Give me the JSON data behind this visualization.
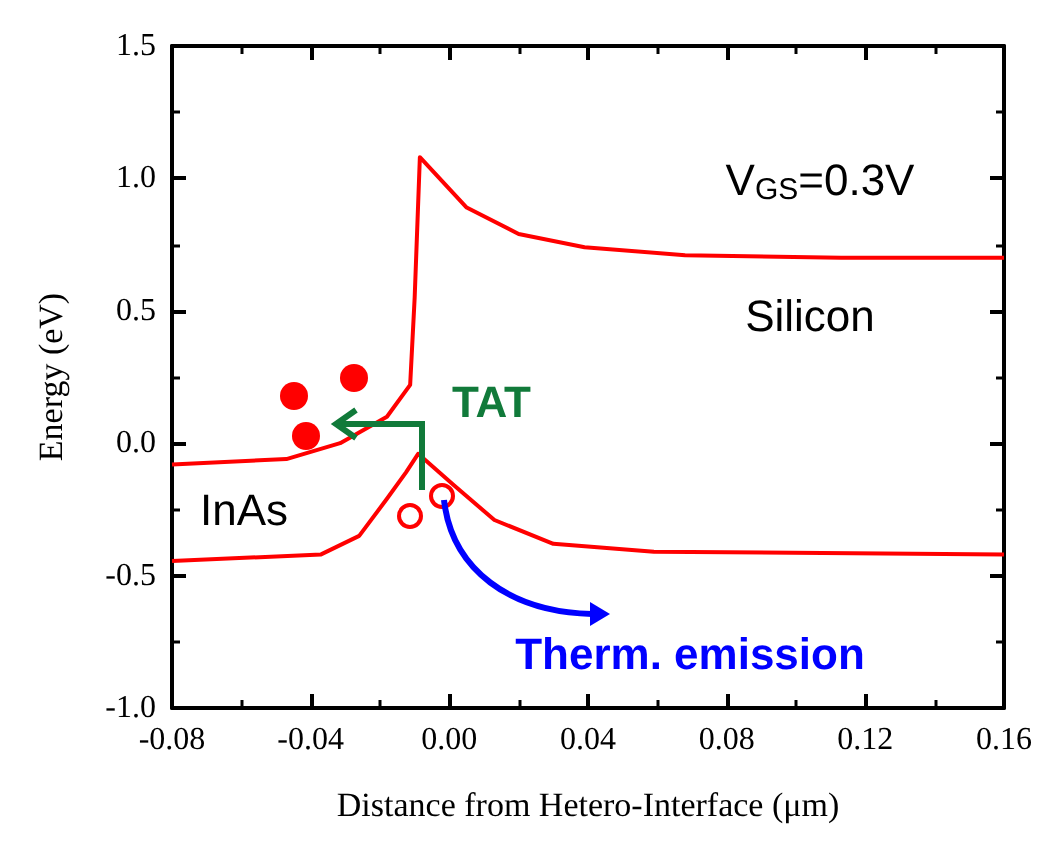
{
  "chart_data": {
    "type": "line",
    "xlabel": "Distance from Hetero-Interface (μm)",
    "ylabel": "Energy (eV)",
    "series": [
      {
        "color": "#ff0000",
        "x": [
          -0.08,
          -0.047,
          -0.0315,
          -0.018,
          -0.0113,
          -0.01,
          -0.0085,
          0.005,
          0.02,
          0.039,
          0.068,
          0.113,
          0.16
        ],
        "values": [
          -0.08,
          -0.06,
          0.0,
          0.1,
          0.22,
          0.55,
          1.08,
          0.89,
          0.79,
          0.74,
          0.71,
          0.7,
          0.7
        ]
      },
      {
        "color": "#ff0000",
        "x": [
          -0.08,
          -0.037,
          -0.026,
          -0.018,
          -0.0125,
          -0.009,
          0.0014,
          0.013,
          0.03,
          0.059,
          0.16
        ],
        "values": [
          -0.445,
          -0.42,
          -0.35,
          -0.21,
          -0.11,
          -0.04,
          -0.16,
          -0.29,
          -0.38,
          -0.41,
          -0.42
        ]
      }
    ],
    "xlim": [
      -0.08,
      0.16
    ],
    "xticks": [
      {
        "value": -0.08,
        "label": "-0.08"
      },
      {
        "value": -0.04,
        "label": "-0.04"
      },
      {
        "value": 0,
        "label": "0.00"
      },
      {
        "value": 0.04,
        "label": "0.04"
      },
      {
        "value": 0.08,
        "label": "0.08"
      },
      {
        "value": 0.12,
        "label": "0.12"
      },
      {
        "value": 0.16,
        "label": "0.16"
      }
    ],
    "ylim": [
      -1.0,
      1.5
    ],
    "yticks": [
      {
        "value": -1,
        "label": "-1.0"
      },
      {
        "value": -0.5,
        "label": "-0.5"
      },
      {
        "value": 0,
        "label": "0.0"
      },
      {
        "value": 0.5,
        "label": "0.5"
      },
      {
        "value": 1,
        "label": "1.0"
      },
      {
        "value": 1.5,
        "label": "1.5"
      }
    ],
    "marker": "none",
    "line_style": "solid",
    "annotations": [
      "V$_{GS}$=0.3V",
      "Silicon",
      "InAs",
      "TAT",
      "Therm. emission"
    ]
  }
}
